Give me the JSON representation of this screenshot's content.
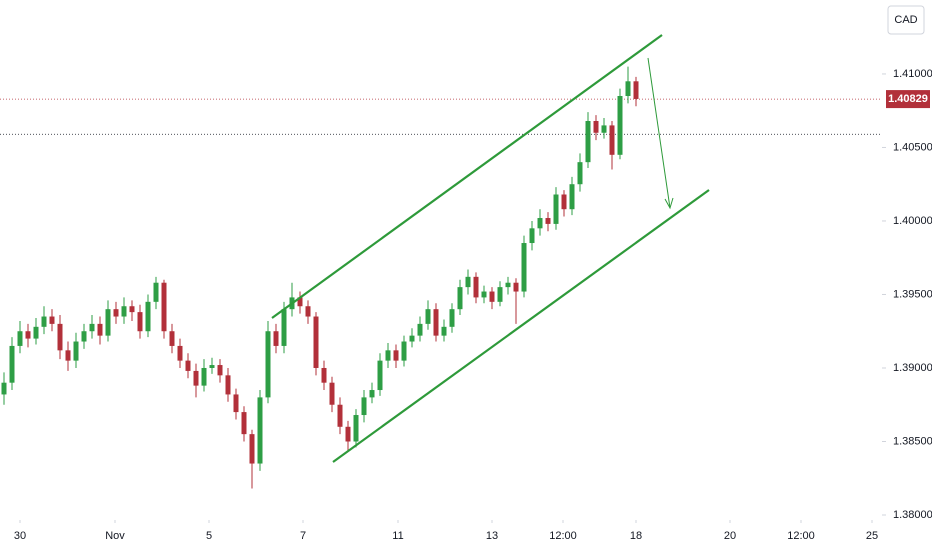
{
  "chart_data": {
    "type": "candlestick",
    "currency": "CAD",
    "last_price": 1.40829,
    "last_price_label": "1.40829",
    "reference_line": 1.4059,
    "up_color": "#2e9e45",
    "down_color": "#b2303a",
    "xlim": [
      -0.5,
      109.75
    ],
    "xticks": [
      {
        "value": 2,
        "label": "30"
      },
      {
        "value": 13.875,
        "label": "Nov"
      },
      {
        "value": 25.625,
        "label": "5"
      },
      {
        "value": 37.375,
        "label": "7"
      },
      {
        "value": 49.25,
        "label": "11"
      },
      {
        "value": 61,
        "label": "13"
      },
      {
        "value": 69.875,
        "label": "12:00"
      },
      {
        "value": 79,
        "label": "18"
      },
      {
        "value": 90.75,
        "label": "20"
      },
      {
        "value": 99.625,
        "label": "12:00"
      },
      {
        "value": 108.5,
        "label": "25"
      }
    ],
    "ylim": [
      1.37966,
      1.41503
    ],
    "yticks": [
      {
        "value": 1.41,
        "label": "1.41000"
      },
      {
        "value": 1.405,
        "label": "1.40500"
      },
      {
        "value": 1.4,
        "label": "1.40000"
      },
      {
        "value": 1.395,
        "label": "1.39500"
      },
      {
        "value": 1.39,
        "label": "1.39000"
      },
      {
        "value": 1.385,
        "label": "1.38500"
      },
      {
        "value": 1.38,
        "label": "1.38000"
      }
    ],
    "open": [
      1.3882,
      1.389,
      1.3915,
      1.3925,
      1.392,
      1.3928,
      1.3935,
      1.393,
      1.3912,
      1.3905,
      1.3918,
      1.3925,
      1.393,
      1.3922,
      1.394,
      1.3935,
      1.3942,
      1.3938,
      1.3925,
      1.3945,
      1.3958,
      1.3925,
      1.3915,
      1.3905,
      1.3898,
      1.3888,
      1.39,
      1.3902,
      1.3895,
      1.3882,
      1.387,
      1.3855,
      1.3835,
      1.388,
      1.3925,
      1.3915,
      1.394,
      1.3948,
      1.3942,
      1.3935,
      1.39,
      1.389,
      1.3875,
      1.386,
      1.385,
      1.3868,
      1.388,
      1.3885,
      1.3905,
      1.3912,
      1.3905,
      1.3918,
      1.3922,
      1.393,
      1.394,
      1.3922,
      1.3928,
      1.394,
      1.3955,
      1.3962,
      1.3948,
      1.3952,
      1.3945,
      1.3955,
      1.3958,
      1.3952,
      1.3985,
      1.3995,
      1.4002,
      1.3998,
      1.4018,
      1.4008,
      1.4025,
      1.404,
      1.4068,
      1.406,
      1.4065,
      1.4045,
      1.4085,
      1.4095
    ],
    "high": [
      1.3897,
      1.3921,
      1.3932,
      1.393,
      1.3934,
      1.3942,
      1.394,
      1.3936,
      1.3918,
      1.3924,
      1.393,
      1.3936,
      1.3935,
      1.3946,
      1.3945,
      1.3948,
      1.3946,
      1.3943,
      1.395,
      1.3962,
      1.396,
      1.393,
      1.392,
      1.391,
      1.3903,
      1.3906,
      1.3907,
      1.3906,
      1.39,
      1.3886,
      1.3874,
      1.3858,
      1.3885,
      1.3932,
      1.393,
      1.3945,
      1.3958,
      1.3952,
      1.3946,
      1.3938,
      1.3905,
      1.3894,
      1.388,
      1.3864,
      1.3872,
      1.3885,
      1.389,
      1.391,
      1.3917,
      1.3916,
      1.3922,
      1.3927,
      1.3935,
      1.3946,
      1.3944,
      1.3933,
      1.3944,
      1.396,
      1.3967,
      1.3965,
      1.3956,
      1.3955,
      1.3959,
      1.3962,
      1.3961,
      1.399,
      1.4,
      1.4008,
      1.4006,
      1.4023,
      1.4021,
      1.403,
      1.4046,
      1.4074,
      1.4072,
      1.407,
      1.4068,
      1.409,
      1.4105,
      1.4098
    ],
    "low": [
      1.3875,
      1.3885,
      1.391,
      1.3914,
      1.3916,
      1.3923,
      1.3925,
      1.3906,
      1.3898,
      1.39,
      1.3913,
      1.392,
      1.3916,
      1.3918,
      1.393,
      1.393,
      1.3932,
      1.392,
      1.3921,
      1.394,
      1.392,
      1.391,
      1.39,
      1.3893,
      1.388,
      1.3884,
      1.3896,
      1.389,
      1.3877,
      1.3865,
      1.385,
      1.3818,
      1.383,
      1.3876,
      1.391,
      1.391,
      1.3935,
      1.3937,
      1.393,
      1.3895,
      1.3885,
      1.387,
      1.3855,
      1.3843,
      1.3846,
      1.3863,
      1.3876,
      1.3881,
      1.39,
      1.39,
      1.3901,
      1.3914,
      1.3918,
      1.3926,
      1.3918,
      1.3918,
      1.3924,
      1.3936,
      1.395,
      1.3944,
      1.3944,
      1.394,
      1.3942,
      1.395,
      1.393,
      1.3948,
      1.398,
      1.399,
      1.3993,
      1.3994,
      1.4003,
      1.4004,
      1.402,
      1.4036,
      1.4055,
      1.4056,
      1.4035,
      1.4042,
      1.408,
      1.4078
    ],
    "close": [
      1.389,
      1.3915,
      1.3925,
      1.392,
      1.3928,
      1.3935,
      1.393,
      1.3912,
      1.3905,
      1.3918,
      1.3925,
      1.393,
      1.3922,
      1.394,
      1.3935,
      1.3942,
      1.3938,
      1.3925,
      1.3945,
      1.3958,
      1.3925,
      1.3915,
      1.3905,
      1.3898,
      1.3888,
      1.39,
      1.3902,
      1.3895,
      1.3882,
      1.387,
      1.3855,
      1.3835,
      1.388,
      1.3925,
      1.3915,
      1.394,
      1.3948,
      1.3942,
      1.3935,
      1.39,
      1.389,
      1.3875,
      1.386,
      1.385,
      1.3868,
      1.388,
      1.3885,
      1.3905,
      1.3912,
      1.3905,
      1.3918,
      1.3922,
      1.393,
      1.394,
      1.3922,
      1.3928,
      1.394,
      1.3955,
      1.3962,
      1.3948,
      1.3952,
      1.3945,
      1.3955,
      1.3958,
      1.3952,
      1.3985,
      1.3995,
      1.4002,
      1.3998,
      1.4018,
      1.4008,
      1.4025,
      1.404,
      1.4068,
      1.406,
      1.4065,
      1.4045,
      1.4085,
      1.4095,
      1.4083
    ]
  }
}
